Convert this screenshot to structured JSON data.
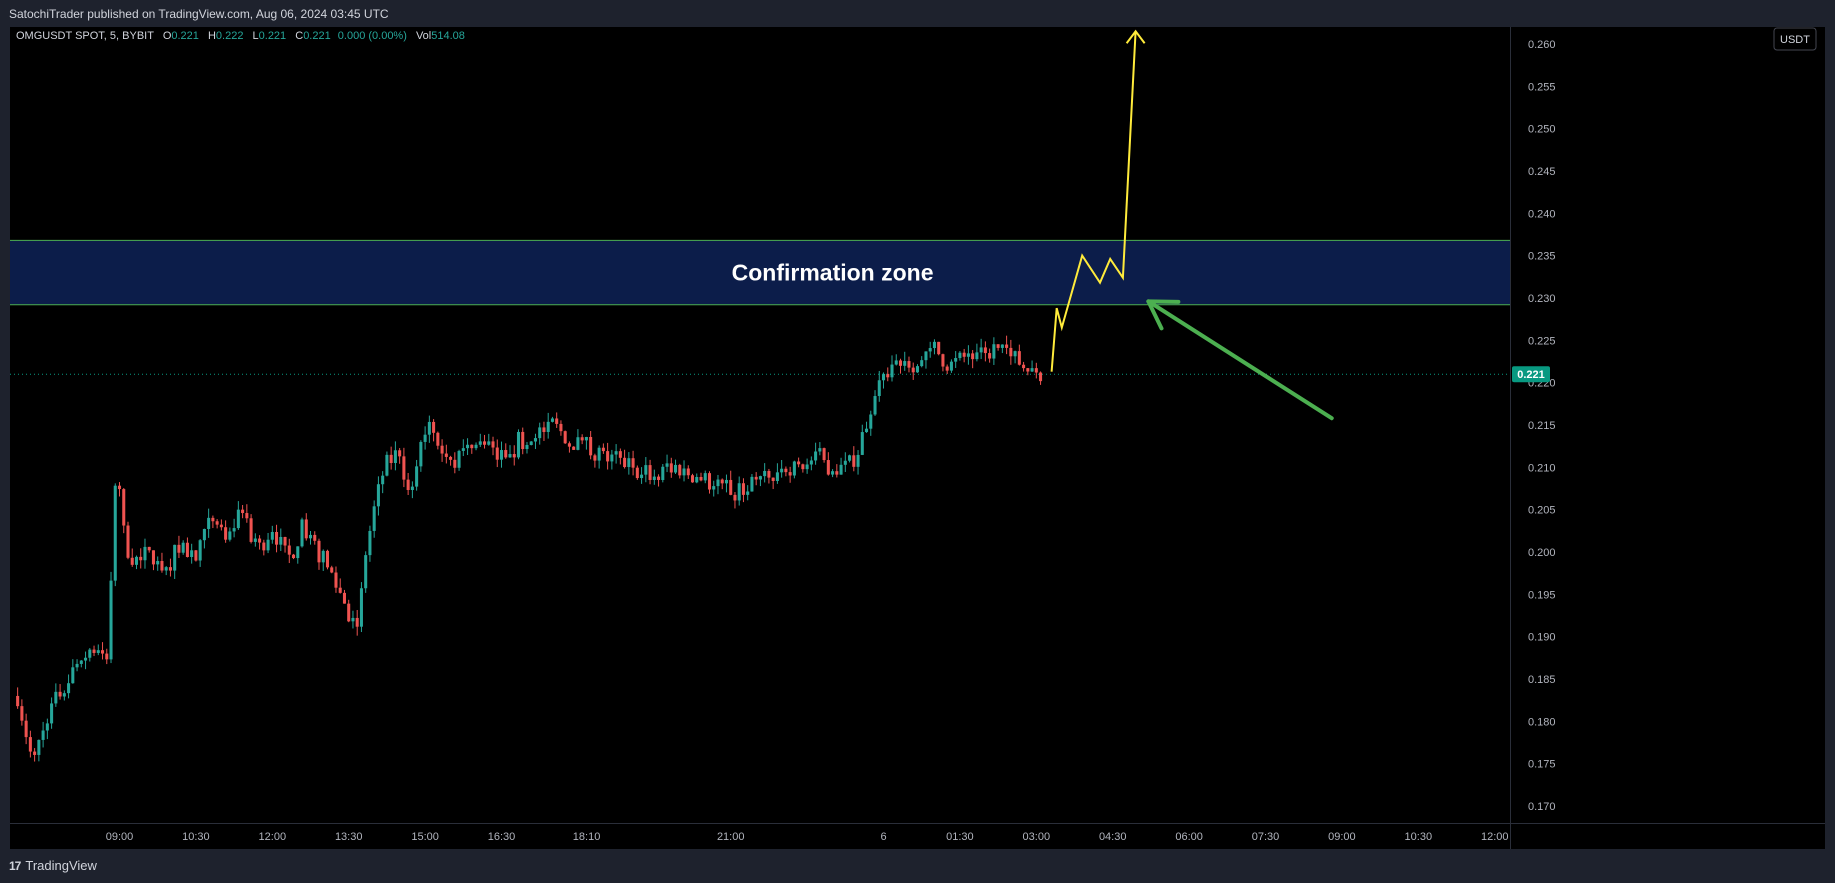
{
  "header": {
    "published": "SatochiTrader published on TradingView.com, Aug 06, 2024 03:45 UTC"
  },
  "legend": {
    "symbol": "OMGUSDT SPOT, 5, BYBIT",
    "o_label": "O",
    "o_value": "0.221",
    "h_label": "H",
    "h_value": "0.222",
    "l_label": "L",
    "l_value": "0.221",
    "c_label": "C",
    "c_value": "0.221",
    "change": "0.000 (0.00%)",
    "vol_label": "Vol",
    "vol_value": "514.08"
  },
  "currency_button": "USDT",
  "footer": {
    "brand": "TradingView",
    "logo_glyph": "17"
  },
  "colors": {
    "up": "#26a69a",
    "down": "#ef5350",
    "zone": "#0c1d4a",
    "zone_border": "#4caf50",
    "projection": "#ffeb3b",
    "arrow": "#4caf50",
    "last_price": "#089981"
  },
  "chart_data": {
    "type": "candlestick",
    "y_ticks": [
      "0.260",
      "0.255",
      "0.250",
      "0.245",
      "0.240",
      "0.235",
      "0.230",
      "0.225",
      "0.220",
      "0.215",
      "0.210",
      "0.205",
      "0.200",
      "0.195",
      "0.190",
      "0.185",
      "0.180",
      "0.175",
      "0.170"
    ],
    "ylim": [
      0.168,
      0.262
    ],
    "x_ticks": [
      {
        "label": "09:00",
        "t": 9.0
      },
      {
        "label": "10:30",
        "t": 10.5
      },
      {
        "label": "12:00",
        "t": 12.0
      },
      {
        "label": "13:30",
        "t": 13.5
      },
      {
        "label": "15:00",
        "t": 15.0
      },
      {
        "label": "16:30",
        "t": 16.5
      },
      {
        "label": "18:10",
        "t": 18.17
      },
      {
        "label": "21:00",
        "t": 21.0
      },
      {
        "label": "6",
        "t": 24.0
      },
      {
        "label": "01:30",
        "t": 25.5
      },
      {
        "label": "03:00",
        "t": 27.0
      },
      {
        "label": "04:30",
        "t": 28.5
      },
      {
        "label": "06:00",
        "t": 30.0
      },
      {
        "label": "07:30",
        "t": 31.5
      },
      {
        "label": "09:00",
        "t": 33.0
      },
      {
        "label": "10:30",
        "t": 34.5
      },
      {
        "label": "12:00",
        "t": 36.0
      }
    ],
    "xlim": [
      6.85,
      36.3
    ],
    "last_price": {
      "label": "0.221",
      "value": 0.221
    },
    "confirmation_zone": {
      "label": "Confirmation zone",
      "low": 0.2292,
      "high": 0.2368
    },
    "projection_path": [
      [
        27.3,
        0.2213
      ],
      [
        27.4,
        0.2288
      ],
      [
        27.5,
        0.2265
      ],
      [
        27.9,
        0.235
      ],
      [
        28.25,
        0.2318
      ],
      [
        28.45,
        0.2346
      ],
      [
        28.7,
        0.2324
      ],
      [
        28.95,
        0.2615
      ]
    ],
    "green_arrow": {
      "from": [
        32.8,
        0.2158
      ],
      "to": [
        29.2,
        0.2296
      ]
    },
    "price_path": [
      [
        7.0,
        0.183
      ],
      [
        7.3,
        0.175
      ],
      [
        7.6,
        0.181
      ],
      [
        7.9,
        0.184
      ],
      [
        8.2,
        0.187
      ],
      [
        8.5,
        0.189
      ],
      [
        8.75,
        0.187
      ],
      [
        8.85,
        0.198
      ],
      [
        8.95,
        0.212
      ],
      [
        9.1,
        0.201
      ],
      [
        9.3,
        0.199
      ],
      [
        9.6,
        0.2
      ],
      [
        9.9,
        0.198
      ],
      [
        10.2,
        0.201
      ],
      [
        10.5,
        0.199
      ],
      [
        10.8,
        0.204
      ],
      [
        11.1,
        0.201
      ],
      [
        11.4,
        0.205
      ],
      [
        11.7,
        0.2
      ],
      [
        12.0,
        0.203
      ],
      [
        12.3,
        0.199
      ],
      [
        12.6,
        0.203
      ],
      [
        12.9,
        0.2
      ],
      [
        13.2,
        0.197
      ],
      [
        13.5,
        0.193
      ],
      [
        13.7,
        0.191
      ],
      [
        13.8,
        0.199
      ],
      [
        14.0,
        0.205
      ],
      [
        14.2,
        0.21
      ],
      [
        14.5,
        0.212
      ],
      [
        14.7,
        0.206
      ],
      [
        14.9,
        0.213
      ],
      [
        15.1,
        0.216
      ],
      [
        15.3,
        0.213
      ],
      [
        15.6,
        0.211
      ],
      [
        16.0,
        0.213
      ],
      [
        16.4,
        0.211
      ],
      [
        16.8,
        0.213
      ],
      [
        17.2,
        0.214
      ],
      [
        17.5,
        0.215
      ],
      [
        17.9,
        0.213
      ],
      [
        18.3,
        0.212
      ],
      [
        18.7,
        0.211
      ],
      [
        19.1,
        0.21
      ],
      [
        19.5,
        0.209
      ],
      [
        19.9,
        0.21
      ],
      [
        20.3,
        0.209
      ],
      [
        20.7,
        0.208
      ],
      [
        21.1,
        0.207
      ],
      [
        21.5,
        0.208
      ],
      [
        21.9,
        0.209
      ],
      [
        22.3,
        0.21
      ],
      [
        22.7,
        0.211
      ],
      [
        23.0,
        0.21
      ],
      [
        23.3,
        0.21
      ],
      [
        23.5,
        0.212
      ],
      [
        23.7,
        0.216
      ],
      [
        23.9,
        0.219
      ],
      [
        24.1,
        0.222
      ],
      [
        24.4,
        0.223
      ],
      [
        24.7,
        0.222
      ],
      [
        25.0,
        0.224
      ],
      [
        25.3,
        0.222
      ],
      [
        25.6,
        0.223
      ],
      [
        25.9,
        0.223
      ],
      [
        26.2,
        0.224
      ],
      [
        26.5,
        0.223
      ],
      [
        26.8,
        0.222
      ],
      [
        27.1,
        0.221
      ]
    ]
  }
}
